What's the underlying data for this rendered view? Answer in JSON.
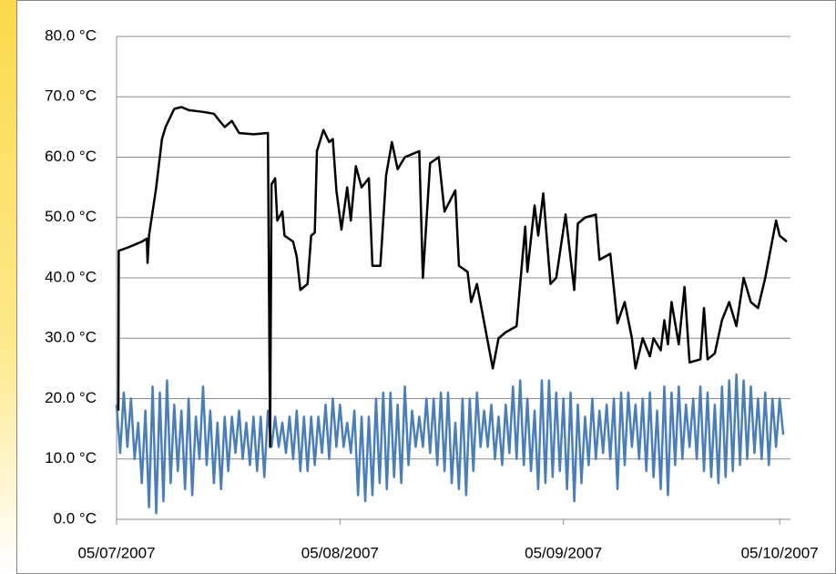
{
  "chart_data": {
    "type": "line",
    "ylim": [
      0,
      80
    ],
    "yticks": [
      {
        "value": 0,
        "label": "0.0 °C"
      },
      {
        "value": 10,
        "label": "10.0 °C"
      },
      {
        "value": 20,
        "label": "20.0 °C"
      },
      {
        "value": 30,
        "label": "30.0 °C"
      },
      {
        "value": 40,
        "label": "40.0 °C"
      },
      {
        "value": 50,
        "label": "50.0 °C"
      },
      {
        "value": 60,
        "label": "60.0 °C"
      },
      {
        "value": 70,
        "label": "70.0 °C"
      },
      {
        "value": 80,
        "label": "80.0 °C"
      }
    ],
    "xlim": [
      39268,
      39361.5
    ],
    "xticks": [
      {
        "value": 39268,
        "label": "05/07/2007"
      },
      {
        "value": 39299,
        "label": "05/08/2007"
      },
      {
        "value": 39330,
        "label": "05/09/2007"
      },
      {
        "value": 39360,
        "label": "05/10/2007"
      }
    ],
    "grid": true,
    "series": [
      {
        "color": "#4a7ebb",
        "x": [
          39268,
          39268.5,
          39269,
          39269.5,
          39270,
          39270.5,
          39271,
          39271.5,
          39272,
          39272.5,
          39273,
          39273.5,
          39274,
          39274.5,
          39275,
          39275.5,
          39276,
          39276.5,
          39277,
          39277.5,
          39278,
          39278.5,
          39279,
          39279.5,
          39280,
          39280.5,
          39281,
          39281.5,
          39282,
          39282.5,
          39283,
          39283.5,
          39284,
          39284.5,
          39285,
          39285.5,
          39286,
          39286.5,
          39287,
          39287.5,
          39288,
          39288.5,
          39289,
          39289.5,
          39290,
          39290.5,
          39291,
          39291.5,
          39292,
          39292.5,
          39293,
          39293.5,
          39294,
          39294.5,
          39295,
          39295.5,
          39296,
          39296.5,
          39297,
          39297.5,
          39298,
          39298.5,
          39299,
          39299.5,
          39300,
          39300.5,
          39301,
          39301.5,
          39302,
          39302.5,
          39303,
          39303.5,
          39304,
          39304.5,
          39305,
          39305.5,
          39306,
          39306.5,
          39307,
          39307.5,
          39308,
          39308.5,
          39309,
          39309.5,
          39310,
          39310.5,
          39311,
          39311.5,
          39312,
          39312.5,
          39313,
          39313.5,
          39314,
          39314.5,
          39315,
          39315.5,
          39316,
          39316.5,
          39317,
          39317.5,
          39318,
          39318.5,
          39319,
          39319.5,
          39320,
          39320.5,
          39321,
          39321.5,
          39322,
          39322.5,
          39323,
          39323.5,
          39324,
          39324.5,
          39325,
          39325.5,
          39326,
          39326.5,
          39327,
          39327.5,
          39328,
          39328.5,
          39329,
          39329.5,
          39330,
          39330.5,
          39331,
          39331.5,
          39332,
          39332.5,
          39333,
          39333.5,
          39334,
          39334.5,
          39335,
          39335.5,
          39336,
          39336.5,
          39337,
          39337.5,
          39338,
          39338.5,
          39339,
          39339.5,
          39340,
          39340.5,
          39341,
          39341.5,
          39342,
          39342.5,
          39343,
          39343.5,
          39344,
          39344.5,
          39345,
          39345.5,
          39346,
          39346.5,
          39347,
          39347.5,
          39348,
          39348.5,
          39349,
          39349.5,
          39350,
          39350.5,
          39351,
          39351.5,
          39352,
          39352.5,
          39353,
          39353.5,
          39354,
          39354.5,
          39355,
          39355.5,
          39356,
          39356.5,
          39357,
          39357.5,
          39358,
          39358.5,
          39359,
          39359.5,
          39360,
          39360.5
        ],
        "values": [
          19,
          11,
          21,
          12,
          20,
          10,
          16,
          6,
          18,
          2,
          22,
          1,
          21,
          3,
          23,
          6,
          19,
          8,
          18,
          5,
          20,
          4,
          17,
          10,
          22,
          9,
          18,
          6,
          16,
          5,
          17,
          8,
          17,
          11,
          18,
          10,
          16,
          9,
          17,
          8,
          17,
          7,
          18,
          12,
          17,
          12,
          16,
          11,
          17,
          10,
          18,
          8,
          17,
          8,
          17,
          9,
          17,
          11,
          19,
          10,
          20,
          12,
          19,
          12,
          16,
          11,
          18,
          4,
          17,
          3,
          17,
          4,
          20,
          6,
          21,
          5,
          21,
          7,
          19,
          6,
          22,
          9,
          18,
          12,
          17,
          12,
          20,
          11,
          20,
          9,
          21,
          8,
          21,
          6,
          16,
          5,
          20,
          4,
          20,
          8,
          21,
          12,
          18,
          12,
          19,
          10,
          17,
          9,
          19,
          11,
          22,
          10,
          23,
          9,
          20,
          8,
          18,
          5,
          23,
          6,
          23,
          7,
          21,
          8,
          20,
          5,
          21,
          3,
          19,
          6,
          17,
          9,
          20,
          10,
          18,
          11,
          19,
          10,
          20,
          5,
          21,
          9,
          21,
          12,
          19,
          10,
          20,
          8,
          21,
          7,
          18,
          5,
          22,
          4,
          21,
          9,
          22,
          10,
          19,
          12,
          20,
          10,
          22,
          8,
          21,
          7,
          19,
          6,
          22,
          7,
          23,
          8,
          24,
          9,
          23,
          10,
          22,
          11,
          20,
          10,
          21,
          9,
          20,
          12,
          20,
          14
        ]
      },
      {
        "color": "#000000",
        "x": [
          39268.25,
          39268.3,
          39269.5,
          39270.5,
          39271.5,
          39272.2,
          39272.3,
          39272.5,
          39273.5,
          39274.3,
          39274.8,
          39276,
          39277,
          39278,
          39280,
          39281.5,
          39282.3,
          39283,
          39284,
          39285,
          39287,
          39289,
          39289.3,
          39289.5,
          39290,
          39290.3,
          39291,
          39291.3,
          39292.5,
          39293,
          39293.5,
          39294.5,
          39295,
          39295.5,
          39295.8,
          39296.7,
          39297.5,
          39298,
          39298.5,
          39299.2,
          39300,
          39300.5,
          39301.2,
          39302,
          39303,
          39303.5,
          39304.6,
          39305.4,
          39306.2,
          39307,
          39308,
          39309,
          39310,
          39310.5,
          39311.5,
          39312.7,
          39313.5,
          39315,
          39315.5,
          39316.7,
          39317.2,
          39318,
          39320.2,
          39321,
          39322,
          39323.5,
          39324,
          39324.7,
          39325,
          39326,
          39326.5,
          39327.2,
          39328.2,
          39329,
          39330.3,
          39331.5,
          39332,
          39333,
          39334.5,
          39335,
          39336.5,
          39337.5,
          39338.5,
          39339.5,
          39340,
          39341,
          39342,
          39342.5,
          39343.5,
          39344,
          39344.5,
          39345,
          39346,
          39346.8,
          39347.5,
          39349,
          39349.5,
          39350,
          39351,
          39352,
          39353,
          39354,
          39355,
          39356,
          39357,
          39358,
          39359.5,
          39360,
          39361
        ],
        "values": [
          18,
          44.5,
          45,
          45.5,
          46,
          46.5,
          42.5,
          47,
          55,
          63,
          65,
          68,
          68.3,
          67.8,
          67.5,
          67.2,
          66,
          65,
          66,
          64,
          63.8,
          64,
          12,
          55.5,
          56.5,
          49.5,
          51,
          47,
          46,
          43.5,
          38,
          39,
          47,
          47.5,
          61,
          64.5,
          62.5,
          63,
          54.5,
          48,
          55,
          49.5,
          58.5,
          55,
          56.5,
          42,
          42,
          57,
          62.5,
          58,
          60,
          60.5,
          61,
          40,
          59,
          60,
          51,
          54.5,
          42,
          41,
          36,
          39,
          25,
          30,
          31,
          32,
          39,
          48.5,
          41,
          52,
          47,
          54,
          39,
          40,
          50.5,
          38,
          49,
          50,
          50.5,
          43,
          44,
          32.5,
          36,
          30,
          25,
          30,
          27,
          30,
          28,
          33,
          29,
          36,
          29,
          38.5,
          26,
          26.5,
          35,
          26.5,
          27.5,
          33,
          36,
          32,
          40,
          36,
          35,
          40,
          49.5,
          47,
          46
        ]
      }
    ]
  }
}
